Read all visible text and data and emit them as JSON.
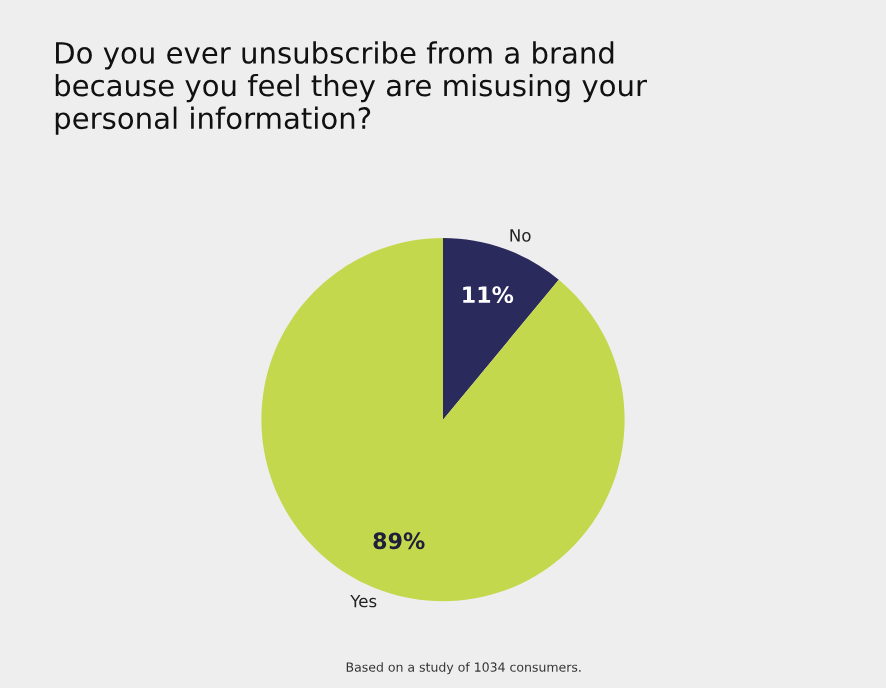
{
  "chart_data": {
    "type": "pie",
    "title": "Do you ever unsubscribe from a brand\nbecause you feel they are misusing your\npersonal information?",
    "categories": [
      "No",
      "Yes"
    ],
    "values": [
      11,
      89
    ],
    "colors": [
      "#2b2a5c",
      "#c4d84e"
    ],
    "value_labels": [
      "11%",
      "89%"
    ],
    "annotations": [
      "Based on a study of 1034 consumers."
    ],
    "legend": false
  }
}
